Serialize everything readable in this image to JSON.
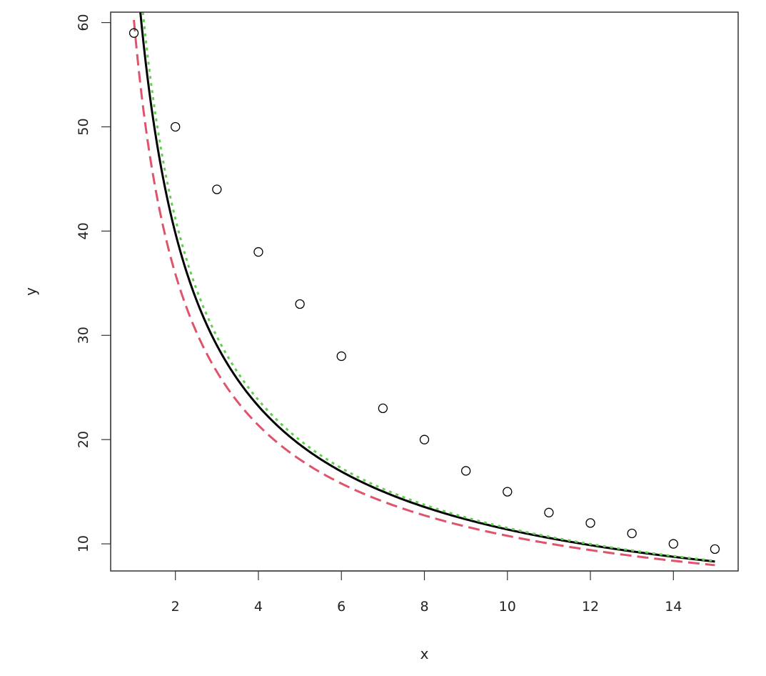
{
  "chart_data": {
    "type": "scatter",
    "title": "",
    "xlabel": "x",
    "ylabel": "y",
    "xlim": [
      0.44,
      15.56
    ],
    "ylim": [
      7.4,
      61.0
    ],
    "x_ticks": [
      2,
      4,
      6,
      8,
      10,
      12,
      14
    ],
    "y_ticks": [
      10,
      20,
      30,
      40,
      50,
      60
    ],
    "x_tick_labels": [
      "2",
      "4",
      "6",
      "8",
      "10",
      "12",
      "14"
    ],
    "y_tick_labels": [
      "10",
      "20",
      "30",
      "40",
      "50",
      "60"
    ],
    "grid": false,
    "legend": "none",
    "points": {
      "x": [
        1,
        2,
        3,
        4,
        5,
        6,
        7,
        8,
        9,
        10,
        11,
        12,
        13,
        14,
        15
      ],
      "y": [
        59,
        50,
        44,
        38,
        33,
        28,
        23,
        20,
        17,
        15,
        13,
        12,
        11,
        10,
        9.5
      ],
      "marker": "open-circle",
      "color": "#000000"
    },
    "curves": [
      {
        "line_style": "dashed",
        "color": "#DF536B",
        "x_range": [
          1,
          15
        ],
        "fit": {
          "a": 60.25,
          "b": 0.7476
        }
      },
      {
        "line_style": "solid",
        "color": "#000000",
        "x_range": [
          1,
          15
        ],
        "fit": {
          "a": 68.25,
          "b": 0.7779
        }
      },
      {
        "line_style": "dotted",
        "color": "#61D04F",
        "x_range": [
          1,
          15
        ],
        "fit": {
          "a": 71.25,
          "b": 0.7911
        }
      }
    ]
  }
}
